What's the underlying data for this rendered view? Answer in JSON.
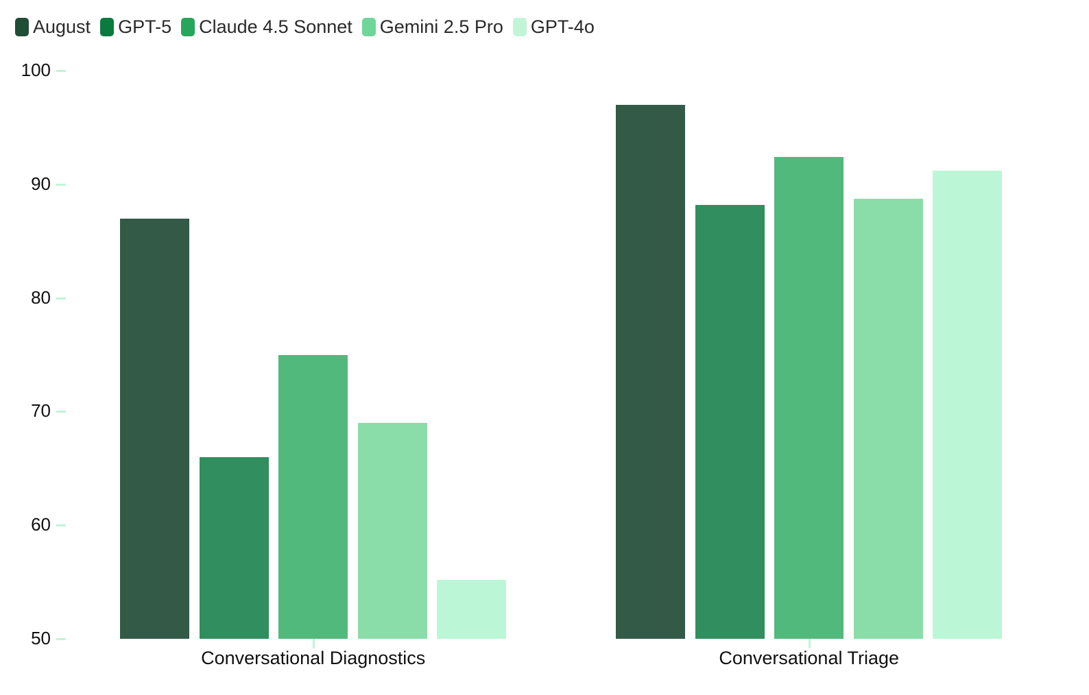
{
  "legend": [
    {
      "label": "August",
      "color": "#1f4d35"
    },
    {
      "label": "GPT-5",
      "color": "#0a7a3e"
    },
    {
      "label": "Claude 4.5 Sonnet",
      "color": "#26a65b"
    },
    {
      "label": "Gemini 2.5 Pro",
      "color": "#6fd699"
    },
    {
      "label": "GPT-4o",
      "color": "#c2f5d8"
    }
  ],
  "chart_data": {
    "type": "bar",
    "title": "",
    "xlabel": "",
    "ylabel": "",
    "categories": [
      "Conversational Diagnostics",
      "Conversational Triage"
    ],
    "series": [
      {
        "name": "August",
        "color": "#325a47",
        "values": [
          87,
          97
        ]
      },
      {
        "name": "GPT-5",
        "color": "#318e5e",
        "values": [
          66,
          88.2
        ]
      },
      {
        "name": "Claude 4.5 Sonnet",
        "color": "#52b97c",
        "values": [
          75,
          92.4
        ]
      },
      {
        "name": "Gemini 2.5 Pro",
        "color": "#8adda9",
        "values": [
          69,
          88.7
        ]
      },
      {
        "name": "GPT-4o",
        "color": "#bbf7d6",
        "values": [
          55.2,
          91.2
        ]
      }
    ],
    "ylim": [
      50,
      100
    ],
    "yticks": [
      100,
      90,
      80,
      70,
      60,
      50
    ],
    "grid": false,
    "legend_position": "top-left"
  }
}
